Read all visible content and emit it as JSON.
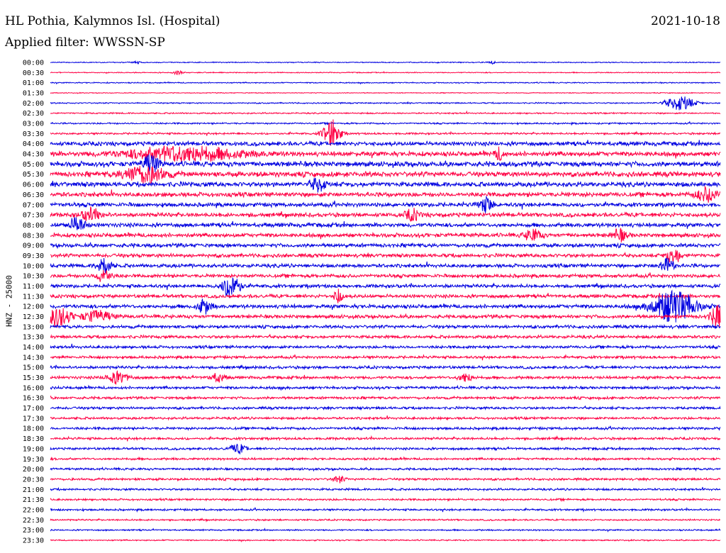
{
  "header": {
    "title": "HL Pothia, Kalymnos Isl. (Hospital)",
    "date": "2021-10-18",
    "filter": "Applied filter: WWSSN-SP"
  },
  "chart_data": {
    "type": "line",
    "ylabel": "HNZ - 25000",
    "series_colors": [
      "#0000e0",
      "#ff0044"
    ],
    "grid": false,
    "row_labels": [
      "00:00",
      "00:30",
      "01:00",
      "01:30",
      "02:00",
      "02:30",
      "03:00",
      "03:30",
      "04:00",
      "04:30",
      "05:00",
      "05:30",
      "06:00",
      "06:30",
      "07:00",
      "07:30",
      "08:00",
      "08:30",
      "09:00",
      "09:30",
      "10:00",
      "10:30",
      "11:00",
      "11:30",
      "12:00",
      "12:30",
      "13:00",
      "13:30",
      "14:00",
      "14:30",
      "15:00",
      "15:30",
      "16:00",
      "16:30",
      "17:00",
      "17:30",
      "18:00",
      "18:30",
      "19:00",
      "19:30",
      "20:00",
      "20:30",
      "21:00",
      "21:30",
      "22:00",
      "22:30",
      "23:00",
      "23:30"
    ],
    "noise_level": [
      0.6,
      0.6,
      0.7,
      0.5,
      0.8,
      0.9,
      1.0,
      1.2,
      2.6,
      3.0,
      3.2,
      3.2,
      3.0,
      2.8,
      2.6,
      2.6,
      2.6,
      2.5,
      2.4,
      2.3,
      2.3,
      2.2,
      2.2,
      2.2,
      2.4,
      2.2,
      2.0,
      1.9,
      1.8,
      1.7,
      1.8,
      1.8,
      1.7,
      1.6,
      1.6,
      1.5,
      1.6,
      1.5,
      1.5,
      1.4,
      1.4,
      1.4,
      1.3,
      1.2,
      1.2,
      1.0,
      0.9,
      0.8
    ],
    "bursts": [
      {
        "row": 0,
        "t": 0.13,
        "amp": 2,
        "w": 0.006
      },
      {
        "row": 0,
        "t": 0.66,
        "amp": 2,
        "w": 0.006
      },
      {
        "row": 1,
        "t": 0.19,
        "amp": 3,
        "w": 0.006
      },
      {
        "row": 4,
        "t": 0.94,
        "amp": 10,
        "w": 0.02
      },
      {
        "row": 7,
        "t": 0.42,
        "amp": 20,
        "w": 0.012
      },
      {
        "row": 9,
        "t": 0.2,
        "amp": 10,
        "w": 0.08
      },
      {
        "row": 9,
        "t": 0.67,
        "amp": 8,
        "w": 0.006
      },
      {
        "row": 10,
        "t": 0.15,
        "amp": 12,
        "w": 0.012
      },
      {
        "row": 11,
        "t": 0.14,
        "amp": 12,
        "w": 0.03
      },
      {
        "row": 12,
        "t": 0.4,
        "amp": 10,
        "w": 0.01
      },
      {
        "row": 13,
        "t": 0.98,
        "amp": 10,
        "w": 0.015
      },
      {
        "row": 14,
        "t": 0.65,
        "amp": 10,
        "w": 0.01
      },
      {
        "row": 15,
        "t": 0.06,
        "amp": 8,
        "w": 0.015
      },
      {
        "row": 15,
        "t": 0.54,
        "amp": 8,
        "w": 0.01
      },
      {
        "row": 16,
        "t": 0.04,
        "amp": 10,
        "w": 0.012
      },
      {
        "row": 17,
        "t": 0.72,
        "amp": 8,
        "w": 0.012
      },
      {
        "row": 17,
        "t": 0.85,
        "amp": 8,
        "w": 0.01
      },
      {
        "row": 19,
        "t": 0.93,
        "amp": 12,
        "w": 0.01
      },
      {
        "row": 20,
        "t": 0.08,
        "amp": 12,
        "w": 0.01
      },
      {
        "row": 20,
        "t": 0.92,
        "amp": 10,
        "w": 0.01
      },
      {
        "row": 21,
        "t": 0.08,
        "amp": 10,
        "w": 0.01
      },
      {
        "row": 22,
        "t": 0.27,
        "amp": 18,
        "w": 0.012
      },
      {
        "row": 23,
        "t": 0.43,
        "amp": 10,
        "w": 0.006
      },
      {
        "row": 24,
        "t": 0.93,
        "amp": 24,
        "w": 0.03
      },
      {
        "row": 24,
        "t": 0.23,
        "amp": 10,
        "w": 0.01
      },
      {
        "row": 25,
        "t": 0.01,
        "amp": 14,
        "w": 0.02
      },
      {
        "row": 25,
        "t": 0.07,
        "amp": 8,
        "w": 0.02
      },
      {
        "row": 25,
        "t": 0.995,
        "amp": 14,
        "w": 0.01
      },
      {
        "row": 31,
        "t": 0.1,
        "amp": 8,
        "w": 0.015
      },
      {
        "row": 31,
        "t": 0.25,
        "amp": 6,
        "w": 0.01
      },
      {
        "row": 31,
        "t": 0.62,
        "amp": 6,
        "w": 0.01
      },
      {
        "row": 38,
        "t": 0.28,
        "amp": 6,
        "w": 0.012
      },
      {
        "row": 41,
        "t": 0.43,
        "amp": 5,
        "w": 0.008
      }
    ]
  }
}
